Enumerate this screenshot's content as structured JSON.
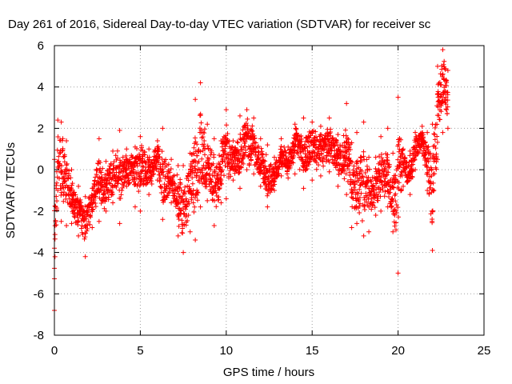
{
  "chart_data": {
    "type": "scatter",
    "title": "Day 261 of 2016, Sidereal Day-to-day VTEC variation (SDTVAR) for receiver sc",
    "xlabel": "GPS time / hours",
    "ylabel": "SDTVAR / TECUs",
    "xlim": [
      0,
      25
    ],
    "ylim": [
      -8,
      6
    ],
    "xticks": [
      0,
      5,
      10,
      15,
      20,
      25
    ],
    "yticks": [
      -8,
      -6,
      -4,
      -2,
      0,
      2,
      4,
      6
    ],
    "grid": true,
    "marker": "+",
    "color": "#ff0000",
    "envelope": [
      {
        "x": 0.0,
        "lo": -6.8,
        "hi": 0.5
      },
      {
        "x": 0.2,
        "lo": -1.0,
        "hi": 2.4
      },
      {
        "x": 0.4,
        "lo": -2.5,
        "hi": 2.3
      },
      {
        "x": 0.7,
        "lo": -2.7,
        "hi": 1.4
      },
      {
        "x": 1.0,
        "lo": -2.6,
        "hi": 0.0
      },
      {
        "x": 1.4,
        "lo": -3.2,
        "hi": -0.8
      },
      {
        "x": 1.8,
        "lo": -4.2,
        "hi": -1.3
      },
      {
        "x": 2.2,
        "lo": -2.8,
        "hi": -0.9
      },
      {
        "x": 2.6,
        "lo": -2.5,
        "hi": 1.5
      },
      {
        "x": 3.0,
        "lo": -2.0,
        "hi": 0.4
      },
      {
        "x": 3.4,
        "lo": -1.6,
        "hi": 0.9
      },
      {
        "x": 3.8,
        "lo": -2.6,
        "hi": 1.9
      },
      {
        "x": 4.2,
        "lo": -0.8,
        "hi": 1.0
      },
      {
        "x": 4.7,
        "lo": -1.8,
        "hi": 1.1
      },
      {
        "x": 5.0,
        "lo": -2.0,
        "hi": 1.6
      },
      {
        "x": 5.5,
        "lo": -1.2,
        "hi": 1.0
      },
      {
        "x": 6.0,
        "lo": -0.5,
        "hi": 1.4
      },
      {
        "x": 6.3,
        "lo": -2.4,
        "hi": 2.0
      },
      {
        "x": 6.8,
        "lo": -1.6,
        "hi": 0.5
      },
      {
        "x": 7.2,
        "lo": -3.2,
        "hi": 0.2
      },
      {
        "x": 7.5,
        "lo": -4.0,
        "hi": 0.2
      },
      {
        "x": 7.9,
        "lo": -3.0,
        "hi": 0.8
      },
      {
        "x": 8.2,
        "lo": -3.4,
        "hi": 3.4
      },
      {
        "x": 8.5,
        "lo": -1.8,
        "hi": 4.2
      },
      {
        "x": 8.9,
        "lo": -1.5,
        "hi": 2.2
      },
      {
        "x": 9.3,
        "lo": -2.7,
        "hi": 1.5
      },
      {
        "x": 9.7,
        "lo": -1.6,
        "hi": 1.4
      },
      {
        "x": 10.0,
        "lo": -1.4,
        "hi": 2.9
      },
      {
        "x": 10.4,
        "lo": -0.5,
        "hi": 1.4
      },
      {
        "x": 10.8,
        "lo": -0.9,
        "hi": 2.6
      },
      {
        "x": 11.2,
        "lo": 0.0,
        "hi": 2.9
      },
      {
        "x": 11.6,
        "lo": -0.2,
        "hi": 2.5
      },
      {
        "x": 12.0,
        "lo": -0.8,
        "hi": 1.5
      },
      {
        "x": 12.4,
        "lo": -1.8,
        "hi": 1.2
      },
      {
        "x": 12.8,
        "lo": -1.0,
        "hi": 0.6
      },
      {
        "x": 13.2,
        "lo": -0.3,
        "hi": 1.5
      },
      {
        "x": 13.6,
        "lo": -0.4,
        "hi": 1.1
      },
      {
        "x": 14.0,
        "lo": -0.2,
        "hi": 2.2
      },
      {
        "x": 14.5,
        "lo": -0.9,
        "hi": 2.5
      },
      {
        "x": 15.0,
        "lo": -0.5,
        "hi": 2.3
      },
      {
        "x": 15.5,
        "lo": -0.3,
        "hi": 2.1
      },
      {
        "x": 16.0,
        "lo": -0.1,
        "hi": 2.5
      },
      {
        "x": 16.5,
        "lo": -0.8,
        "hi": 1.7
      },
      {
        "x": 17.0,
        "lo": -1.2,
        "hi": 3.2
      },
      {
        "x": 17.3,
        "lo": -2.8,
        "hi": 1.3
      },
      {
        "x": 17.6,
        "lo": -2.6,
        "hi": 1.8
      },
      {
        "x": 18.0,
        "lo": -3.2,
        "hi": 2.3
      },
      {
        "x": 18.3,
        "lo": -3.0,
        "hi": 0.6
      },
      {
        "x": 18.7,
        "lo": -2.2,
        "hi": 0.6
      },
      {
        "x": 19.0,
        "lo": -2.0,
        "hi": 1.6
      },
      {
        "x": 19.4,
        "lo": -1.8,
        "hi": 2.0
      },
      {
        "x": 19.7,
        "lo": -3.0,
        "hi": 0.8
      },
      {
        "x": 20.0,
        "lo": -5.0,
        "hi": 3.5
      },
      {
        "x": 20.3,
        "lo": -0.8,
        "hi": 1.0
      },
      {
        "x": 20.7,
        "lo": -1.2,
        "hi": 0.9
      },
      {
        "x": 21.0,
        "lo": 0.0,
        "hi": 1.8
      },
      {
        "x": 21.4,
        "lo": 0.8,
        "hi": 2.1
      },
      {
        "x": 21.7,
        "lo": -1.0,
        "hi": 1.8
      },
      {
        "x": 22.0,
        "lo": -3.9,
        "hi": 2.2
      },
      {
        "x": 22.3,
        "lo": 0.5,
        "hi": 5.0
      },
      {
        "x": 22.6,
        "lo": 1.8,
        "hi": 5.8
      },
      {
        "x": 22.9,
        "lo": 2.0,
        "hi": 4.8
      }
    ]
  }
}
